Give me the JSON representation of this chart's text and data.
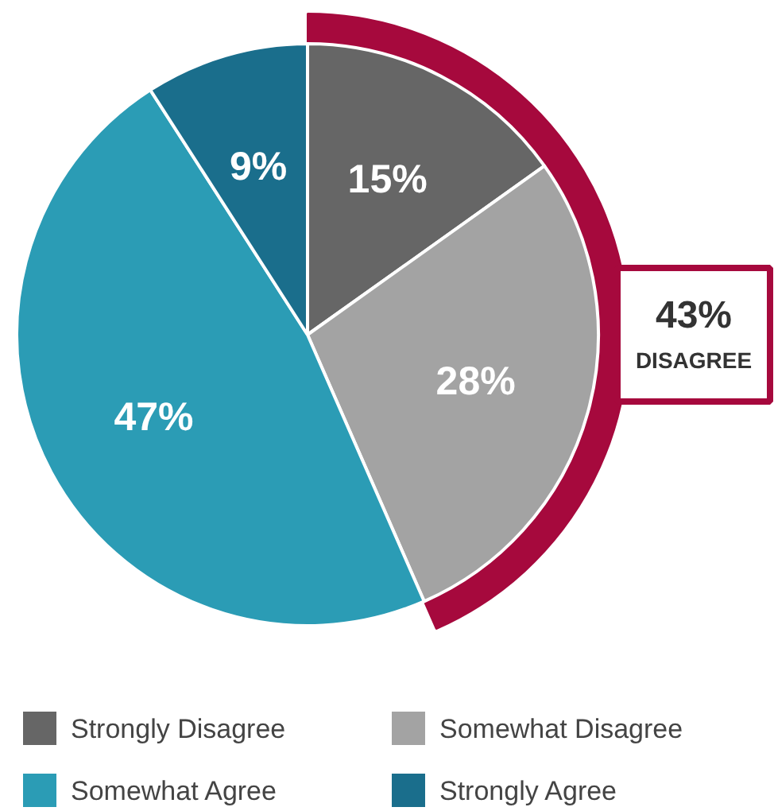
{
  "chart_data": {
    "type": "pie",
    "categories": [
      "Strongly Disagree",
      "Somewhat Disagree",
      "Somewhat Agree",
      "Strongly Agree"
    ],
    "values": [
      15,
      28,
      47,
      9
    ],
    "value_labels": [
      "15%",
      "28%",
      "47%",
      "9%"
    ],
    "colors": [
      "#666666",
      "#a3a3a3",
      "#2b9cb5",
      "#1a6e8c"
    ],
    "legend": "bottom",
    "annotations": [
      {
        "text": "43%\nDISAGREE",
        "x": "Somewhat Disagree"
      }
    ]
  }
}
